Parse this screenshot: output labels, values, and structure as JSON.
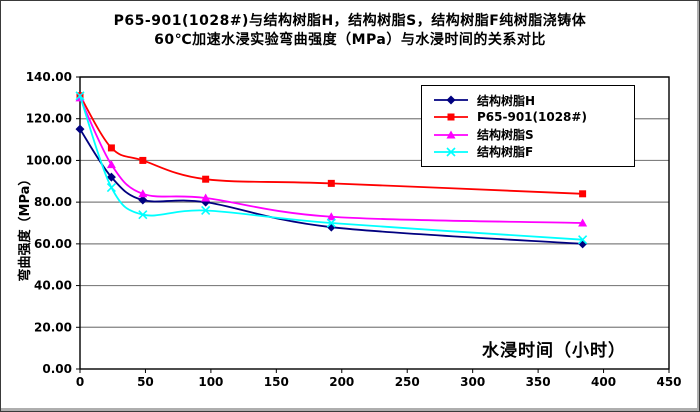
{
  "chart_data": {
    "type": "line",
    "smoothed": true,
    "title": [
      "P65-901(1028#)与结构树脂H，结构树脂S，结构树脂F纯树脂浇铸体",
      "60℃加速水浸实验弯曲强度（MPa）与水浸时间的关系对比"
    ],
    "xlabel": "水浸时间（小时）",
    "ylabel": "弯曲强度（MPa）",
    "x": [
      0,
      24,
      48,
      96,
      192,
      384
    ],
    "series": [
      {
        "name": "结构树脂H",
        "color": "#000080",
        "marker": "diamond",
        "values": [
          115,
          92,
          81,
          80,
          68,
          60
        ]
      },
      {
        "name": "P65-901(1028#)",
        "color": "#FF0000",
        "marker": "square",
        "values": [
          131,
          106,
          100,
          91,
          89,
          84
        ]
      },
      {
        "name": "结构树脂S",
        "color": "#FF00FF",
        "marker": "triangle",
        "values": [
          130,
          98,
          84,
          82,
          73,
          70
        ]
      },
      {
        "name": "结构树脂F",
        "color": "#00FFFF",
        "marker": "x",
        "values": [
          131,
          87,
          74,
          76,
          70,
          62
        ]
      }
    ],
    "x_ticks": [
      0,
      50,
      100,
      150,
      200,
      250,
      300,
      350,
      400,
      450
    ],
    "y_ticks": [
      0,
      20,
      40,
      60,
      80,
      100,
      120,
      140
    ],
    "y_tick_format": "0.00",
    "xlim": [
      0,
      450
    ],
    "ylim": [
      0,
      140
    ],
    "grid": "horizontal",
    "gridline_color": "#808080",
    "axis_color": "#000000",
    "background_color": "#FFFFFF",
    "legend_position": "top-right-inside"
  }
}
